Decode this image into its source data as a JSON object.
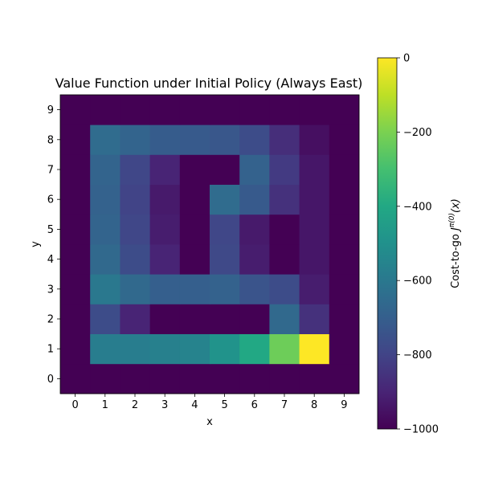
{
  "chart_data": {
    "type": "heatmap",
    "title": "Value Function under Initial Policy (Always East)",
    "xlabel": "x",
    "ylabel": "y",
    "x_ticks": [
      "0",
      "1",
      "2",
      "3",
      "4",
      "5",
      "6",
      "7",
      "8",
      "9"
    ],
    "y_ticks": [
      "0",
      "1",
      "2",
      "3",
      "4",
      "5",
      "6",
      "7",
      "8",
      "9"
    ],
    "colorbar": {
      "label_prefix": "Cost-to-go",
      "label_math": "J",
      "label_superscript": "π(0)",
      "label_suffix": "(x)",
      "vmin": -1000,
      "vmax": 0,
      "colormap": "viridis",
      "ticks": [
        0,
        -200,
        -400,
        -600,
        -800,
        -1000
      ],
      "tick_labels": [
        "0",
        "−200",
        "−400",
        "−600",
        "−800",
        "−1000"
      ]
    },
    "values_by_y": [
      [
        -1000,
        -1000,
        -1000,
        -1000,
        -1000,
        -1000,
        -1000,
        -1000,
        -1000,
        -1000
      ],
      [
        -1000,
        -580,
        -580,
        -570,
        -555,
        -490,
        -400,
        -225,
        0,
        -1000
      ],
      [
        -1000,
        -770,
        -900,
        -1000,
        -1000,
        -1000,
        -1000,
        -660,
        -860,
        -1000
      ],
      [
        -1000,
        -600,
        -660,
        -700,
        -700,
        -690,
        -740,
        -770,
        -920,
        -1000
      ],
      [
        -1000,
        -660,
        -770,
        -900,
        -1000,
        -780,
        -920,
        -1000,
        -940,
        -1000
      ],
      [
        -1000,
        -680,
        -790,
        -920,
        -1000,
        -790,
        -930,
        -1000,
        -940,
        -1000
      ],
      [
        -1000,
        -690,
        -800,
        -930,
        -1000,
        -650,
        -720,
        -860,
        -940,
        -1000
      ],
      [
        -1000,
        -680,
        -790,
        -900,
        -1000,
        -1000,
        -690,
        -830,
        -940,
        -1000
      ],
      [
        -1000,
        -650,
        -680,
        -710,
        -720,
        -730,
        -770,
        -870,
        -960,
        -1000
      ],
      [
        -1000,
        -1000,
        -1000,
        -1000,
        -1000,
        -1000,
        -1000,
        -1000,
        -1000,
        -1000
      ]
    ]
  }
}
